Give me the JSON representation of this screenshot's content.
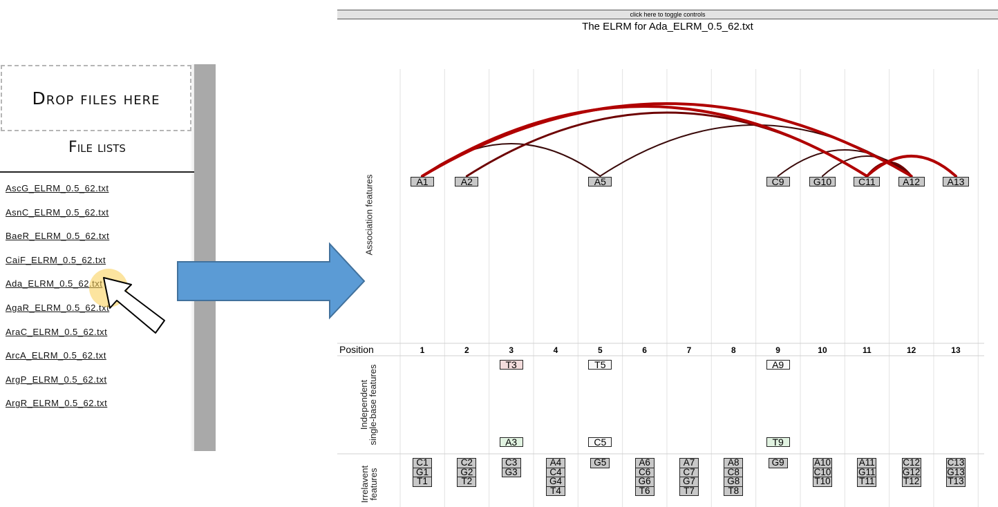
{
  "left_panel": {
    "drop_zone_label": "Drop files here",
    "file_lists_title": "File lists",
    "files": [
      "AscG_ELRM_0.5_62.txt",
      "AsnC_ELRM_0.5_62.txt",
      "BaeR_ELRM_0.5_62.txt",
      "CaiF_ELRM_0.5_62.txt",
      "Ada_ELRM_0.5_62.txt",
      "AgaR_ELRM_0.5_62.txt",
      "AraC_ELRM_0.5_62.txt",
      "ArcA_ELRM_0.5_62.txt",
      "ArgP_ELRM_0.5_62.txt",
      "ArgR_ELRM_0.5_62.txt"
    ],
    "selected_file_index": 4
  },
  "toggle_bar": {
    "label": "click here to toggle controls"
  },
  "chart_title": "The ELRM for Ada_ELRM_0.5_62.txt",
  "colors": {
    "arc_strong": "#b00000",
    "arc_medium": "#6d0000",
    "arc_weak": "#3a0a0a",
    "arrow_blue": "#5b9bd5",
    "halo": "#f7cd5c"
  },
  "chart_data": {
    "type": "diagram",
    "y_labels": {
      "association": "Association features",
      "independent": "Independent single-base features",
      "irrelevant": "Irrelavent features"
    },
    "position_label": "Position",
    "positions": [
      "1",
      "2",
      "3",
      "4",
      "5",
      "6",
      "7",
      "8",
      "9",
      "10",
      "11",
      "12",
      "13"
    ],
    "association_features": [
      {
        "label": "A1",
        "pos": 1
      },
      {
        "label": "A2",
        "pos": 2
      },
      {
        "label": "A5",
        "pos": 5
      },
      {
        "label": "C9",
        "pos": 9
      },
      {
        "label": "G10",
        "pos": 10
      },
      {
        "label": "C11",
        "pos": 11
      },
      {
        "label": "A12",
        "pos": 12
      },
      {
        "label": "A13",
        "pos": 13
      }
    ],
    "associations": [
      {
        "from": 1,
        "to": 12,
        "strength": "strong"
      },
      {
        "from": 1,
        "to": 11,
        "strength": "strong"
      },
      {
        "from": 11,
        "to": 13,
        "strength": "strong"
      },
      {
        "from": 2,
        "to": 11,
        "strength": "medium"
      },
      {
        "from": 11,
        "to": 12,
        "strength": "medium"
      },
      {
        "from": 5,
        "to": 12,
        "strength": "weak"
      },
      {
        "from": 1,
        "to": 5,
        "strength": "weak"
      },
      {
        "from": 9,
        "to": 12,
        "strength": "weak"
      },
      {
        "from": 10,
        "to": 12,
        "strength": "weak"
      }
    ],
    "independent_features": [
      {
        "label": "T3",
        "pos": 3,
        "row": "top",
        "style": "pink"
      },
      {
        "label": "T5",
        "pos": 5,
        "row": "top",
        "style": "white"
      },
      {
        "label": "A9",
        "pos": 9,
        "row": "top",
        "style": "white"
      },
      {
        "label": "A3",
        "pos": 3,
        "row": "bottom",
        "style": "green"
      },
      {
        "label": "C5",
        "pos": 5,
        "row": "bottom",
        "style": "white"
      },
      {
        "label": "T9",
        "pos": 9,
        "row": "bottom",
        "style": "green"
      }
    ],
    "irrelevant_features": [
      {
        "pos": 1,
        "labels": [
          "C1",
          "G1",
          "T1"
        ]
      },
      {
        "pos": 2,
        "labels": [
          "C2",
          "G2",
          "T2"
        ]
      },
      {
        "pos": 3,
        "labels": [
          "C3",
          "G3"
        ]
      },
      {
        "pos": 4,
        "labels": [
          "A4",
          "C4",
          "G4",
          "T4"
        ]
      },
      {
        "pos": 5,
        "labels": [
          "G5"
        ]
      },
      {
        "pos": 6,
        "labels": [
          "A6",
          "C6",
          "G6",
          "T6"
        ]
      },
      {
        "pos": 7,
        "labels": [
          "A7",
          "C7",
          "G7",
          "T7"
        ]
      },
      {
        "pos": 8,
        "labels": [
          "A8",
          "C8",
          "G8",
          "T8"
        ]
      },
      {
        "pos": 9,
        "labels": [
          "G9"
        ]
      },
      {
        "pos": 10,
        "labels": [
          "A10",
          "C10",
          "T10"
        ]
      },
      {
        "pos": 11,
        "labels": [
          "A11",
          "G11",
          "T11"
        ]
      },
      {
        "pos": 12,
        "labels": [
          "C12",
          "G12",
          "T12"
        ]
      },
      {
        "pos": 13,
        "labels": [
          "C13",
          "G13",
          "T13"
        ]
      }
    ]
  }
}
